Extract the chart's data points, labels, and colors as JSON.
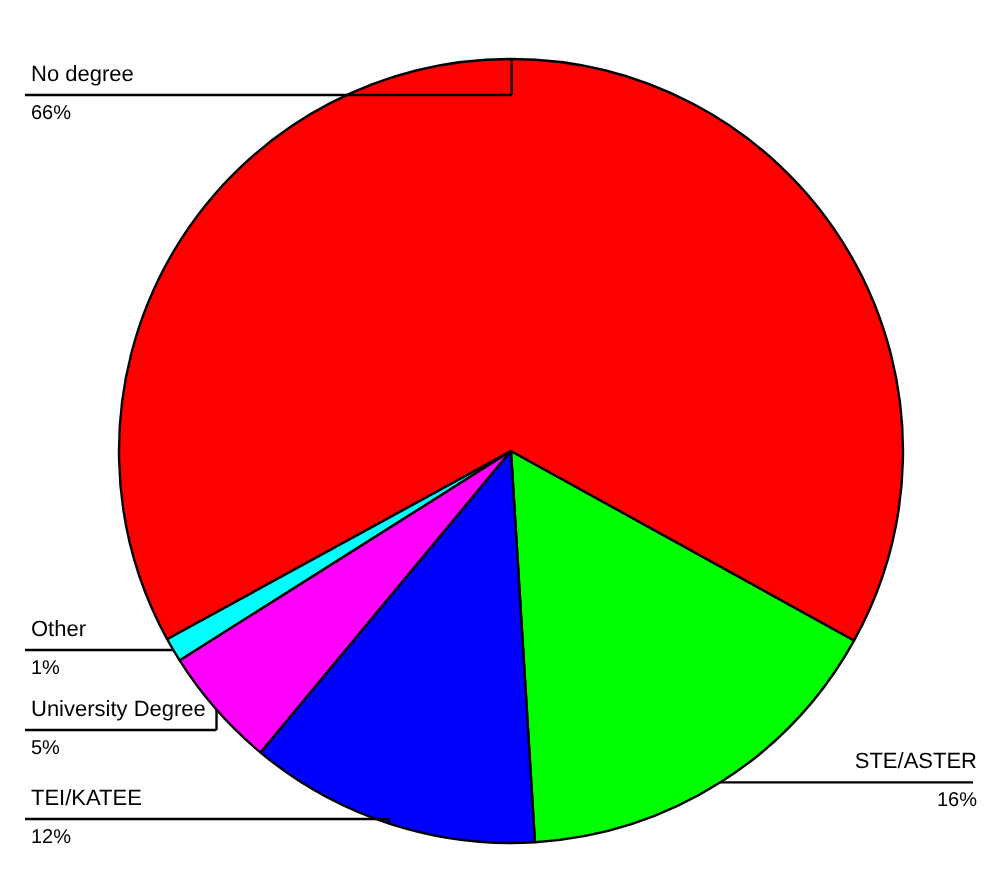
{
  "chart_data": {
    "type": "pie",
    "categories": [
      "STE/ASTER",
      "No degree",
      "Other",
      "University Degree",
      "TEI/KATEE"
    ],
    "values": [
      16,
      66,
      1,
      5,
      12
    ],
    "colors": [
      "#00ff00",
      "#ff0000",
      "#00ffff",
      "#ff00ff",
      "#0000ff"
    ],
    "value_labels": [
      "16%",
      "66%",
      "1%",
      "5%",
      "12%"
    ]
  }
}
